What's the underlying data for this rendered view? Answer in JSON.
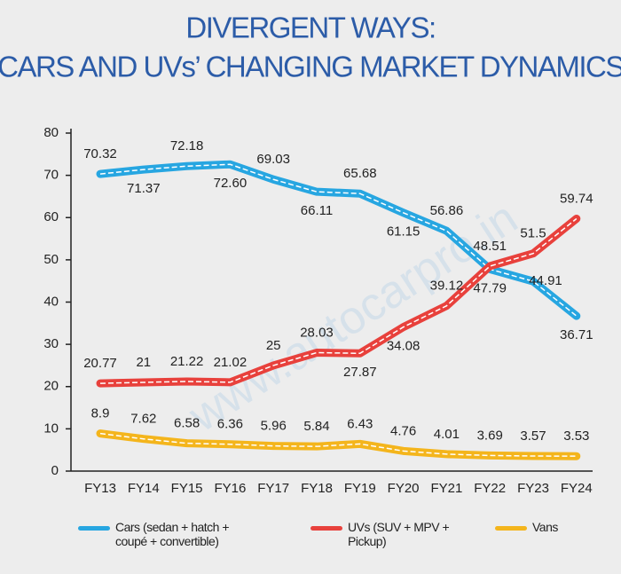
{
  "chart_data": {
    "type": "line",
    "title": [
      "DIVERGENT WAYS:",
      "CARS AND UVs’ CHANGING MARKET DYNAMICS"
    ],
    "watermark": "www.autocarpro.in",
    "categories": [
      "FY13",
      "FY14",
      "FY15",
      "FY16",
      "FY17",
      "FY18",
      "FY19",
      "FY20",
      "FY21",
      "FY22",
      "FY23",
      "FY24"
    ],
    "series": [
      {
        "name": "Cars (sedan + hatch + coupé + convertible)",
        "color": "#27a6e1",
        "values": [
          70.32,
          71.37,
          72.18,
          72.6,
          69.03,
          66.11,
          65.68,
          61.15,
          56.86,
          47.79,
          44.91,
          36.71
        ],
        "value_labels": [
          "70.32",
          "71.37",
          "72.18",
          "72.60",
          "69.03",
          "66.11",
          "65.68",
          "61.15",
          "56.86",
          "47.79",
          "44.91",
          "36.71"
        ]
      },
      {
        "name": "UVs (SUV + MPV + Pickup)",
        "color": "#e8413c",
        "values": [
          20.77,
          21,
          21.22,
          21.02,
          25,
          28.03,
          27.87,
          34.08,
          39.12,
          48.51,
          51.5,
          59.74
        ]
      },
      {
        "name": "Vans",
        "color": "#f4b51c",
        "values": [
          8.9,
          7.62,
          6.58,
          6.36,
          5.96,
          5.84,
          6.43,
          4.76,
          4.01,
          3.69,
          3.57,
          3.53
        ]
      }
    ],
    "ylim": [
      0,
      80
    ],
    "yticks": [
      0,
      10,
      20,
      30,
      40,
      50,
      60,
      70,
      80
    ],
    "grid": false
  }
}
